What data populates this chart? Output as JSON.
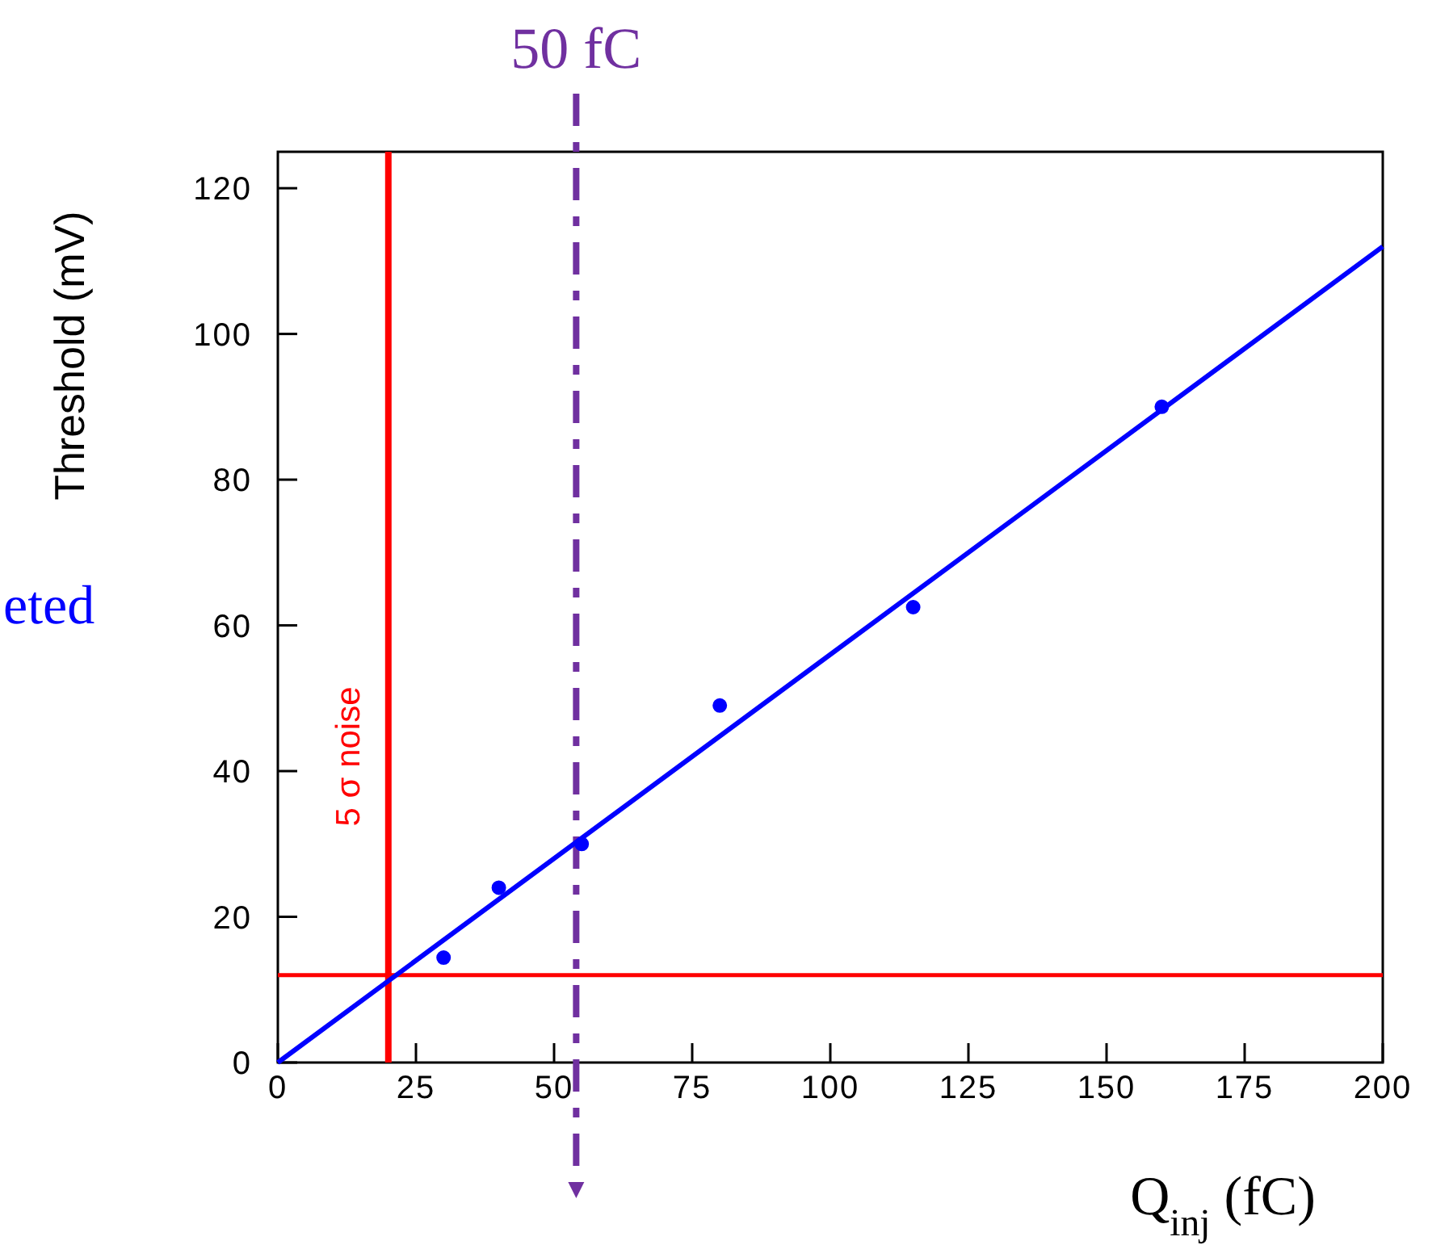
{
  "chart_data": {
    "type": "scatter",
    "xlabel": "Q$_{inj}$ (fC)",
    "ylabel": "Threshold (mV)",
    "x": [
      30,
      40,
      55,
      80,
      115,
      160
    ],
    "series": [
      {
        "color": "#0000ff",
        "values": [
          14.4,
          24,
          30,
          49,
          62.5,
          90
        ],
        "marker": "circle"
      },
      {
        "type": "line",
        "color": "#0000ff",
        "x": [
          0,
          200
        ],
        "values": [
          0,
          112
        ],
        "marker": "none"
      }
    ],
    "xlim": [
      0,
      200
    ],
    "xticks": [
      0,
      25,
      50,
      75,
      100,
      125,
      150,
      175,
      200
    ],
    "ylim": [
      0,
      125
    ],
    "yticks": [
      0,
      20,
      40,
      60,
      80,
      100,
      120
    ],
    "ref_lines": [
      {
        "axis": "x",
        "value": 20,
        "label": "5 σ noise",
        "color": "#ff0000",
        "line_style": "solid"
      },
      {
        "axis": "y",
        "value": 12,
        "color": "#ff0000",
        "line_style": "solid"
      },
      {
        "axis": "x",
        "value": 54,
        "label": "50 fC",
        "color": "#7030a0",
        "line_style": "dashed"
      }
    ],
    "annotations": [
      "eted"
    ]
  }
}
